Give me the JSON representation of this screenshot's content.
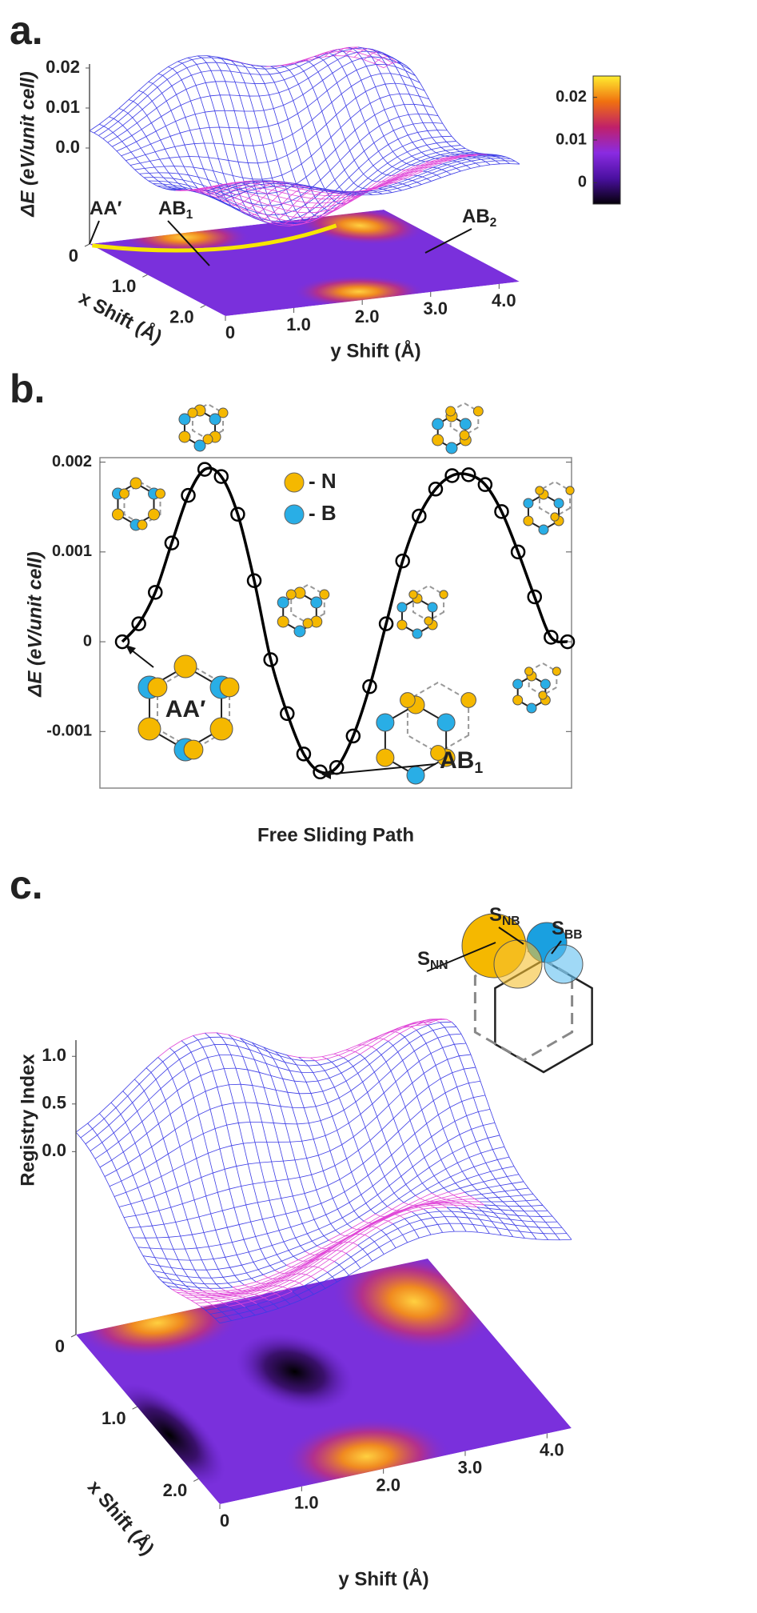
{
  "chart_data": [
    {
      "type": "surface",
      "panel_label": "a.",
      "zlabel": "ΔE (eV/unit cell)",
      "zlim": [
        -0.024,
        0.021
      ],
      "zticks": [
        {
          "value": 0.02,
          "label": "0.02"
        },
        {
          "value": 0.01,
          "label": "0.01"
        },
        {
          "value": 0,
          "label": "0.0"
        }
      ],
      "xlabel": "x Shift (Å)",
      "xlim": [
        0,
        2.35
      ],
      "xticks": [
        0,
        {
          "value": 1,
          "label": "1.0"
        },
        {
          "value": 2,
          "label": "2.0"
        }
      ],
      "ylabel": "y Shift (Å)",
      "ylim": [
        0,
        4.3
      ],
      "yticks": [
        0,
        {
          "value": 1,
          "label": "1.0"
        },
        {
          "value": 2,
          "label": "2.0"
        },
        {
          "value": 3,
          "label": "3.0"
        },
        {
          "value": 4,
          "label": "4.0"
        }
      ],
      "colorbar": {
        "lim": [
          -0.005,
          0.025
        ],
        "ticks": [
          0.02,
          0.01,
          0
        ]
      },
      "annotations": [
        {
          "main": "AA′"
        },
        {
          "main": "AB",
          "sub": "1"
        },
        {
          "main": "AB",
          "sub": "2"
        }
      ],
      "path_color": "#f7e600"
    },
    {
      "type": "line",
      "panel_label": "b.",
      "ylabel": "ΔE (eV/unit cell)",
      "xlabel": "Free Sliding Path",
      "ylim": [
        -0.00163,
        0.00205
      ],
      "yticks": [
        0.002,
        0.001,
        0,
        -0.001
      ],
      "series": [
        {
          "color": "#000000",
          "values": [
            0,
            0.0002,
            0.00055,
            0.0011,
            0.00163,
            0.00192,
            0.00184,
            0.00142,
            0.00068,
            -0.0002,
            -0.0008,
            -0.00125,
            -0.00145,
            -0.0014,
            -0.00105,
            -0.0005,
            0.0002,
            0.0009,
            0.0014,
            0.0017,
            0.00185,
            0.00186,
            0.00175,
            0.00145,
            0.001,
            0.0005,
            5e-05,
            0
          ]
        }
      ],
      "legend": [
        {
          "label": "- N",
          "color": "#f5b800"
        },
        {
          "label": "- B",
          "color": "#29aee6"
        }
      ],
      "annotations": [
        {
          "main": "AA′"
        },
        {
          "main": "AB",
          "sub": "1"
        }
      ]
    },
    {
      "type": "surface",
      "panel_label": "c.",
      "zlabel": "Registry Index",
      "zlim": [
        -1.92,
        1.17
      ],
      "zticks": [
        {
          "value": 1,
          "label": "1.0"
        },
        {
          "value": 0.5,
          "label": "0.5"
        },
        {
          "value": 0,
          "label": "0.0"
        }
      ],
      "xlabel": "x Shift (Å)",
      "xlim": [
        0,
        2.35
      ],
      "xticks": [
        0,
        {
          "value": 1,
          "label": "1.0"
        },
        {
          "value": 2,
          "label": "2.0"
        }
      ],
      "ylabel": "y Shift (Å)",
      "ylim": [
        0,
        4.3
      ],
      "yticks": [
        0,
        {
          "value": 1,
          "label": "1.0"
        },
        {
          "value": 2,
          "label": "2.0"
        },
        {
          "value": 3,
          "label": "3.0"
        },
        {
          "value": 4,
          "label": "4.0"
        }
      ],
      "annotations": [
        {
          "main": "S",
          "sub": "NB"
        },
        {
          "main": "S",
          "sub": "BB"
        },
        {
          "main": "S",
          "sub": "NN"
        }
      ]
    }
  ]
}
